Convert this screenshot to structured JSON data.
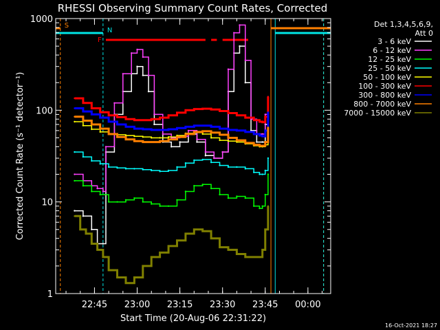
{
  "chart_data": {
    "type": "line",
    "title": "RHESSI Observing Summary Count Rates, Corrected",
    "xlabel": "Start Time (20-Aug-06 22:31:22)",
    "ylabel": "Corrected Count Rate (s⁻¹ detector⁻¹)",
    "yscale": "log",
    "ylim": [
      1,
      1000
    ],
    "xlim": [
      "22:31:22",
      "00:08:00"
    ],
    "x_ticks": [
      "22:45",
      "23:00",
      "23:15",
      "23:30",
      "23:45",
      "00:00"
    ],
    "y_ticks": [
      "1",
      "10",
      "100",
      "1000"
    ],
    "grid": false,
    "legend_position": "right",
    "legend_header": [
      "Det 1,3,4,5,6,9,",
      "Att 0"
    ],
    "timestamp": "16-Oct-2021 18:27",
    "flags": [
      {
        "label": "S",
        "color": "#ff8000",
        "intervals": [
          [
            "22:31:22",
            "22:33:00"
          ],
          [
            "23:47:00",
            "00:08:00"
          ]
        ]
      },
      {
        "label": "N",
        "color": "#00e5e5",
        "intervals": [
          [
            "22:31:22",
            "22:48:00"
          ],
          [
            "23:48:30",
            "00:08:00"
          ]
        ]
      },
      {
        "label": "F",
        "color": "#ff0000",
        "intervals": [
          [
            "22:49:00",
            "23:24:00"
          ],
          [
            "23:26:00",
            "23:28:00"
          ],
          [
            "23:30:00",
            "23:39:00"
          ]
        ]
      }
    ],
    "vlines": [
      {
        "time": "22:33:00",
        "color": "#ff8000",
        "dashed": true
      },
      {
        "time": "22:48:00",
        "color": "#00e5e5",
        "dashed": true
      },
      {
        "time": "23:47:00",
        "color": "#ff8000",
        "dashed": false
      },
      {
        "time": "23:48:30",
        "color": "#00e5e5",
        "dashed": false
      },
      {
        "time": "00:05:30",
        "color": "#ff8000",
        "dashed": true
      },
      {
        "time": "00:05:30",
        "color": "#00e5e5",
        "dashed": true
      }
    ],
    "series": [
      {
        "name": "3 - 6 keV",
        "color": "#ffffff",
        "x": [
          "22:38",
          "22:41",
          "22:44",
          "22:46",
          "22:48",
          "22:49",
          "22:52",
          "22:55",
          "22:58",
          "23:00",
          "23:02",
          "23:04",
          "23:06",
          "23:09",
          "23:12",
          "23:15",
          "23:18",
          "23:21",
          "23:24",
          "23:27",
          "23:30",
          "23:32",
          "23:34",
          "23:36",
          "23:38",
          "23:40",
          "23:42",
          "23:44",
          "23:45",
          "23:46"
        ],
        "y": [
          8,
          7,
          5,
          3.5,
          3.5,
          35,
          90,
          160,
          250,
          300,
          240,
          160,
          70,
          45,
          40,
          45,
          55,
          45,
          32,
          30,
          35,
          160,
          420,
          500,
          200,
          60,
          45,
          45,
          70,
          110
        ]
      },
      {
        "name": "6 - 12 keV",
        "color": "#ff40ff",
        "x": [
          "22:38",
          "22:41",
          "22:44",
          "22:46",
          "22:48",
          "22:49",
          "22:52",
          "22:55",
          "22:58",
          "23:00",
          "23:02",
          "23:04",
          "23:06",
          "23:09",
          "23:12",
          "23:15",
          "23:18",
          "23:21",
          "23:24",
          "23:27",
          "23:30",
          "23:32",
          "23:34",
          "23:36",
          "23:38",
          "23:40",
          "23:42",
          "23:44",
          "23:45",
          "23:46"
        ],
        "y": [
          20,
          17,
          15,
          14,
          13,
          40,
          120,
          250,
          420,
          460,
          380,
          240,
          90,
          55,
          50,
          52,
          60,
          48,
          35,
          30,
          35,
          280,
          700,
          850,
          350,
          80,
          55,
          55,
          90,
          140
        ]
      },
      {
        "name": "12 - 25 keV",
        "color": "#00ff00",
        "x": [
          "22:38",
          "22:41",
          "22:44",
          "22:47",
          "22:50",
          "22:53",
          "22:56",
          "22:59",
          "23:02",
          "23:05",
          "23:08",
          "23:11",
          "23:14",
          "23:17",
          "23:20",
          "23:23",
          "23:26",
          "23:29",
          "23:32",
          "23:35",
          "23:38",
          "23:41",
          "23:43",
          "23:44",
          "23:45",
          "23:46"
        ],
        "y": [
          17,
          15,
          13,
          12,
          10,
          10,
          10.5,
          11,
          10,
          9.5,
          9,
          9,
          10.5,
          13,
          15,
          15.5,
          14,
          12,
          11,
          11.5,
          11,
          9,
          8.5,
          9,
          12,
          20
        ]
      },
      {
        "name": "25 - 50 keV",
        "color": "#00ffff",
        "x": [
          "22:38",
          "22:41",
          "22:44",
          "22:47",
          "22:50",
          "22:53",
          "22:56",
          "22:59",
          "23:02",
          "23:05",
          "23:08",
          "23:11",
          "23:14",
          "23:17",
          "23:20",
          "23:23",
          "23:26",
          "23:29",
          "23:32",
          "23:35",
          "23:38",
          "23:41",
          "23:43",
          "23:44",
          "23:45",
          "23:46"
        ],
        "y": [
          35,
          31,
          28,
          26,
          24,
          23.5,
          23,
          23,
          22.5,
          22,
          21.5,
          22,
          24,
          26.5,
          28.5,
          29,
          27,
          25,
          24,
          24,
          23,
          21,
          20,
          20,
          22,
          30
        ]
      },
      {
        "name": "50 - 100 keV",
        "color": "#ffff00",
        "x": [
          "22:38",
          "22:41",
          "22:44",
          "22:47",
          "22:50",
          "22:53",
          "22:56",
          "22:59",
          "23:02",
          "23:05",
          "23:08",
          "23:11",
          "23:14",
          "23:17",
          "23:20",
          "23:23",
          "23:26",
          "23:29",
          "23:32",
          "23:35",
          "23:38",
          "23:41",
          "23:43",
          "23:44",
          "23:45",
          "23:46"
        ],
        "y": [
          75,
          68,
          62,
          58,
          55,
          54,
          53,
          52,
          51,
          50,
          50,
          51,
          53,
          56,
          57,
          55,
          50,
          47,
          46,
          45,
          43,
          41,
          40,
          40,
          42,
          50
        ]
      },
      {
        "name": "100 - 300 keV",
        "color": "#ff0000",
        "x": [
          "22:38",
          "22:41",
          "22:44",
          "22:47",
          "22:50",
          "22:53",
          "22:56",
          "22:59",
          "23:02",
          "23:05",
          "23:08",
          "23:11",
          "23:14",
          "23:17",
          "23:20",
          "23:23",
          "23:26",
          "23:29",
          "23:32",
          "23:35",
          "23:38",
          "23:41",
          "23:43",
          "23:44",
          "23:45",
          "23:46"
        ],
        "y": [
          135,
          120,
          105,
          95,
          88,
          84,
          80,
          78,
          78,
          80,
          83,
          88,
          94,
          100,
          103,
          104,
          102,
          98,
          93,
          88,
          83,
          78,
          75,
          74,
          85,
          140
        ]
      },
      {
        "name": "300 - 800 keV",
        "color": "#0000ff",
        "x": [
          "22:38",
          "22:41",
          "22:44",
          "22:47",
          "22:50",
          "22:53",
          "22:56",
          "22:59",
          "23:02",
          "23:05",
          "23:08",
          "23:11",
          "23:14",
          "23:17",
          "23:20",
          "23:23",
          "23:26",
          "23:29",
          "23:32",
          "23:35",
          "23:38",
          "23:41",
          "23:43",
          "23:44",
          "23:45",
          "23:46"
        ],
        "y": [
          105,
          97,
          90,
          83,
          75,
          70,
          66,
          63,
          62,
          61,
          61,
          62,
          64,
          66,
          68,
          68,
          66,
          63,
          61,
          60,
          58,
          55,
          53,
          52,
          60,
          95
        ]
      },
      {
        "name": "800 - 7000 keV",
        "color": "#ff8000",
        "x": [
          "22:38",
          "22:41",
          "22:44",
          "22:47",
          "22:50",
          "22:53",
          "22:56",
          "22:59",
          "23:02",
          "23:05",
          "23:08",
          "23:11",
          "23:14",
          "23:17",
          "23:20",
          "23:23",
          "23:26",
          "23:29",
          "23:32",
          "23:35",
          "23:38",
          "23:41",
          "23:43",
          "23:44",
          "23:45",
          "23:46"
        ],
        "y": [
          85,
          77,
          70,
          63,
          55,
          51,
          48,
          46,
          45,
          45,
          46,
          48,
          51,
          55,
          58,
          59,
          57,
          54,
          50,
          47,
          44,
          42,
          41,
          41,
          45,
          65
        ]
      },
      {
        "name": "7000 - 15000 keV",
        "color": "#808000",
        "x": [
          "22:38",
          "22:40",
          "22:42",
          "22:44",
          "22:46",
          "22:48",
          "22:50",
          "22:53",
          "22:56",
          "22:59",
          "23:02",
          "23:05",
          "23:08",
          "23:11",
          "23:14",
          "23:17",
          "23:20",
          "23:23",
          "23:26",
          "23:29",
          "23:32",
          "23:35",
          "23:38",
          "23:41",
          "23:43",
          "23:44",
          "23:45",
          "23:46"
        ],
        "y": [
          7,
          5,
          4.5,
          3.5,
          3,
          2.5,
          1.8,
          1.5,
          1.3,
          1.5,
          2,
          2.5,
          2.8,
          3.3,
          3.8,
          4.5,
          5,
          4.8,
          4,
          3.2,
          3,
          2.7,
          2.5,
          2.5,
          2.5,
          3,
          5,
          9
        ]
      }
    ]
  }
}
